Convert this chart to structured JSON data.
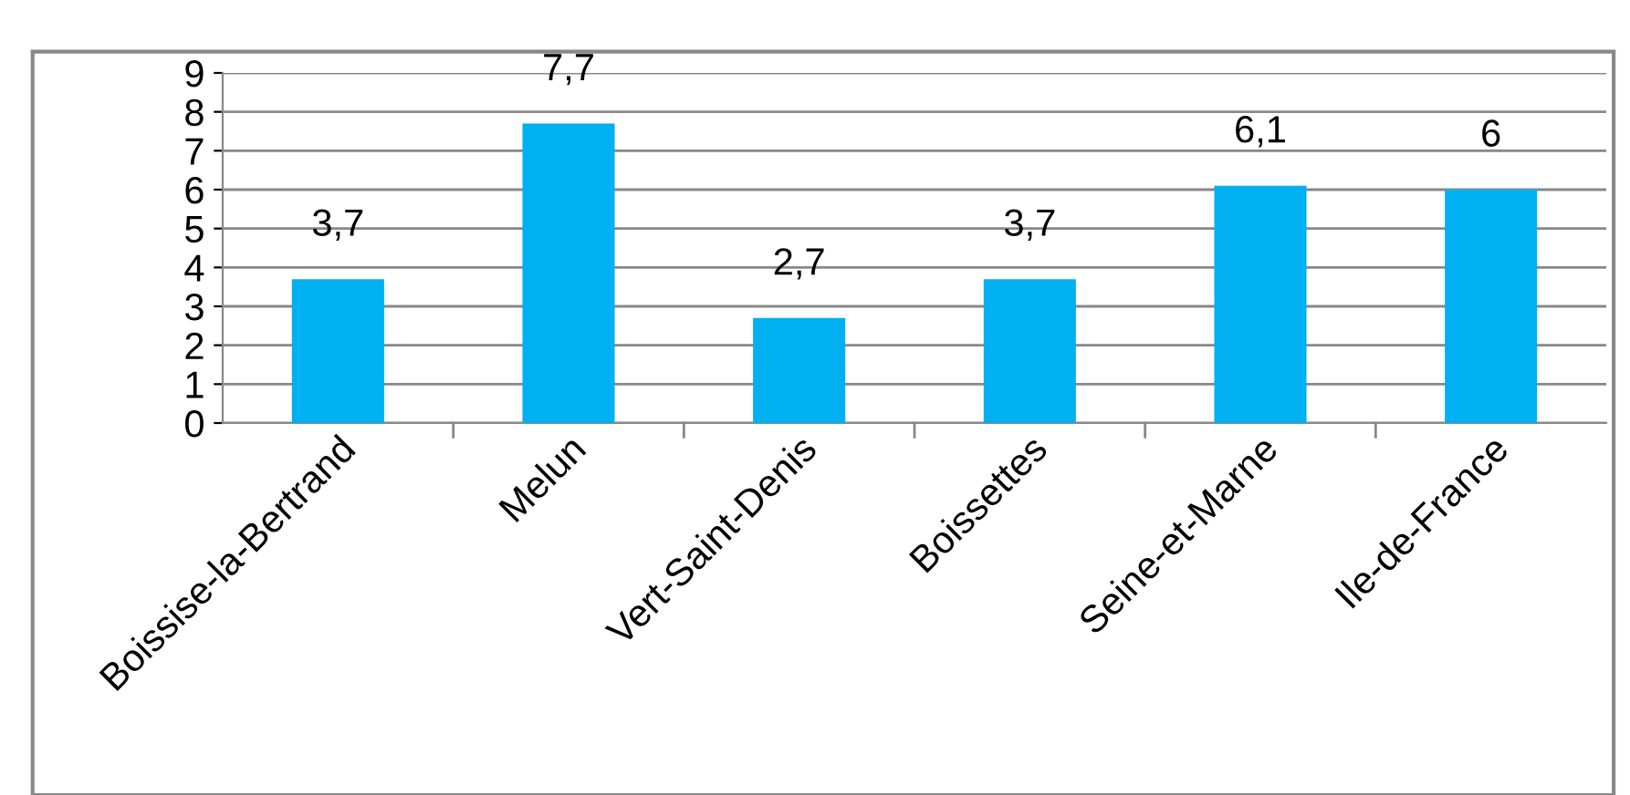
{
  "chart_data": {
    "type": "bar",
    "categories": [
      "Boissise-la-Bertrand",
      "Melun",
      "Vert-Saint-Denis",
      "Boissettes",
      "Seine-et-Marne",
      "Ile-de-France"
    ],
    "values": [
      3.7,
      7.7,
      2.7,
      3.7,
      6.1,
      6
    ],
    "value_labels": [
      "3,7",
      "7,7",
      "2,7",
      "3,7",
      "6,1",
      "6"
    ],
    "color": "#00b0f0",
    "ylim": [
      0,
      9
    ],
    "yticks": [
      0,
      1,
      2,
      3,
      4,
      5,
      6,
      7,
      8,
      9
    ],
    "grid": "y",
    "legend": false
  }
}
